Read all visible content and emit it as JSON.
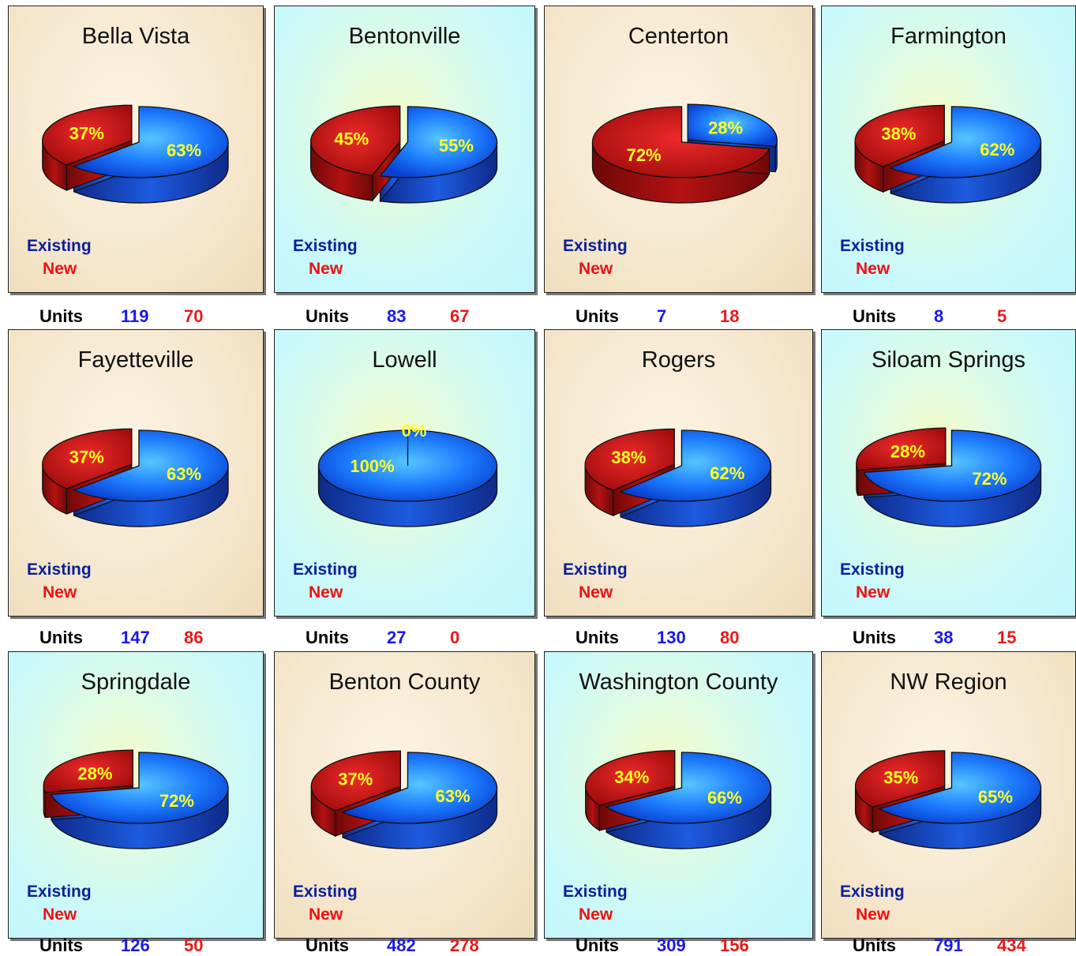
{
  "legend": {
    "existing": "Existing",
    "new": "New"
  },
  "units_label": "Units",
  "colors": {
    "existing": "#1e6cff",
    "new": "#cc1111",
    "label": "#ffff22"
  },
  "chart_data": [
    {
      "type": "pie",
      "title": "Bella Vista",
      "categories": [
        "Existing",
        "New"
      ],
      "values": [
        63,
        37
      ],
      "labels": [
        "63%",
        "37%"
      ],
      "units": [
        119,
        70
      ]
    },
    {
      "type": "pie",
      "title": "Bentonville",
      "categories": [
        "Existing",
        "New"
      ],
      "values": [
        55,
        45
      ],
      "labels": [
        "55%",
        "45%"
      ],
      "units": [
        83,
        67
      ]
    },
    {
      "type": "pie",
      "title": "Centerton",
      "categories": [
        "Existing",
        "New"
      ],
      "values": [
        28,
        72
      ],
      "labels": [
        "28%",
        "72%"
      ],
      "units": [
        7,
        18
      ]
    },
    {
      "type": "pie",
      "title": "Farmington",
      "categories": [
        "Existing",
        "New"
      ],
      "values": [
        62,
        38
      ],
      "labels": [
        "62%",
        "38%"
      ],
      "units": [
        8,
        5
      ]
    },
    {
      "type": "pie",
      "title": "Fayetteville",
      "categories": [
        "Existing",
        "New"
      ],
      "values": [
        63,
        37
      ],
      "labels": [
        "63%",
        "37%"
      ],
      "units": [
        147,
        86
      ]
    },
    {
      "type": "pie",
      "title": "Lowell",
      "categories": [
        "Existing",
        "New"
      ],
      "values": [
        100,
        0
      ],
      "labels": [
        "100%",
        "0%"
      ],
      "units": [
        27,
        0
      ]
    },
    {
      "type": "pie",
      "title": "Rogers",
      "categories": [
        "Existing",
        "New"
      ],
      "values": [
        62,
        38
      ],
      "labels": [
        "62%",
        "38%"
      ],
      "units": [
        130,
        80
      ]
    },
    {
      "type": "pie",
      "title": "Siloam Springs",
      "categories": [
        "Existing",
        "New"
      ],
      "values": [
        72,
        28
      ],
      "labels": [
        "72%",
        "28%"
      ],
      "units": [
        38,
        15
      ]
    },
    {
      "type": "pie",
      "title": "Springdale",
      "categories": [
        "Existing",
        "New"
      ],
      "values": [
        72,
        28
      ],
      "labels": [
        "72%",
        "28%"
      ],
      "units": [
        126,
        50
      ]
    },
    {
      "type": "pie",
      "title": "Benton County",
      "categories": [
        "Existing",
        "New"
      ],
      "values": [
        63,
        37
      ],
      "labels": [
        "63%",
        "37%"
      ],
      "units": [
        482,
        278
      ]
    },
    {
      "type": "pie",
      "title": "Washington County",
      "categories": [
        "Existing",
        "New"
      ],
      "values": [
        66,
        34
      ],
      "labels": [
        "66%",
        "34%"
      ],
      "units": [
        309,
        156
      ]
    },
    {
      "type": "pie",
      "title": "NW Region",
      "categories": [
        "Existing",
        "New"
      ],
      "values": [
        65,
        35
      ],
      "labels": [
        "65%",
        "35%"
      ],
      "units": [
        791,
        434
      ]
    }
  ]
}
